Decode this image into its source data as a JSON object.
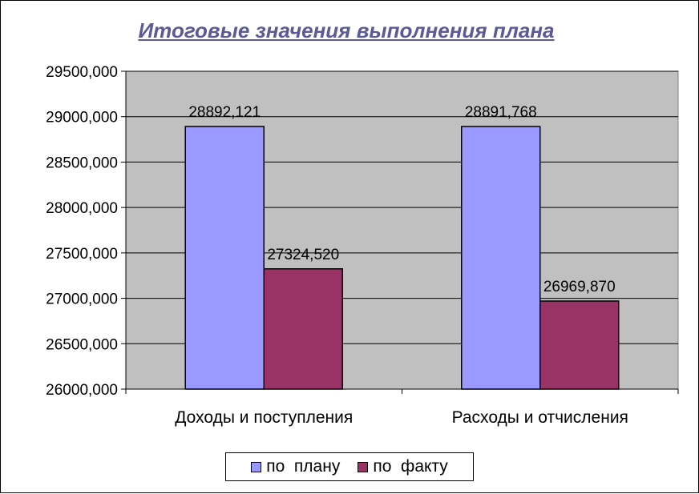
{
  "chart_data": {
    "type": "bar",
    "title": "Итоговые значения выполнения плана",
    "categories": [
      "Доходы и поступления",
      "Расходы и отчисления"
    ],
    "series": [
      {
        "name": "по  плану",
        "color": "#9999ff",
        "values": [
          28892.121,
          28891.768
        ],
        "labels": [
          "28892,121",
          "28891,768"
        ]
      },
      {
        "name": "по  факту",
        "color": "#993366",
        "values": [
          27324.52,
          26969.87
        ],
        "labels": [
          "27324,520",
          "26969,870"
        ]
      }
    ],
    "ylim": [
      26000,
      29500
    ],
    "yticks": [
      26000,
      26500,
      27000,
      27500,
      28000,
      28500,
      29000,
      29500
    ],
    "ytick_labels": [
      "26000,000",
      "26500,000",
      "27000,000",
      "27500,000",
      "28000,000",
      "28500,000",
      "29000,000",
      "29500,000"
    ],
    "grid": true,
    "plot_background": "#c0c0c0",
    "legend_position": "bottom"
  }
}
